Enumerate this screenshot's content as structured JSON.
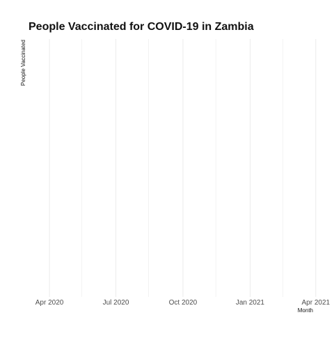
{
  "chart_data": {
    "type": "line",
    "title": "People Vaccinated for COVID-19 in Zambia",
    "xlabel": "Month",
    "ylabel": "People Vaccinated",
    "x_tick_labels": [
      "Apr 2020",
      "Jul 2020",
      "Oct 2020",
      "Jan 2021",
      "Apr 2021"
    ],
    "x_tick_dates": [
      "2020-04-01",
      "2020-07-01",
      "2020-10-01",
      "2021-01-01",
      "2021-04-01"
    ],
    "x_minor_dates": [
      "2020-05-15",
      "2020-08-15",
      "2020-11-15",
      "2021-02-15"
    ],
    "xlim": [
      "2020-03-10",
      "2021-04-05"
    ],
    "grid": true,
    "series": [
      {
        "name": "People Vaccinated",
        "x": [],
        "values": []
      }
    ]
  },
  "colors": {
    "grid": "#ebebeb",
    "text": "#111111",
    "tick_text": "#4d4d4d",
    "background": "#ffffff"
  }
}
